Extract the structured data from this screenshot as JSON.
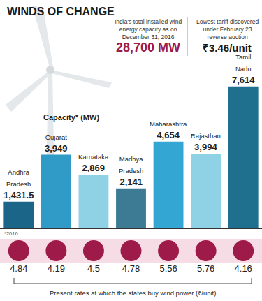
{
  "chart_data": {
    "type": "bar",
    "title": "WINDS OF CHANGE",
    "stats": [
      {
        "text": "India's total installed wind energy capacity as on December 31, 2016",
        "value": 28700,
        "value_label": "28,700 MW"
      },
      {
        "text": "Lowest tariff discovered under February 23 reverse auction",
        "value": 3.46,
        "value_label": "₹3.46/unit"
      }
    ],
    "y_label": "Capacity* (MW)",
    "footnote": "*2016",
    "categories": [
      "Andhra Pradesh",
      "Gujarat",
      "Karnataka",
      "Madhya Pradesh",
      "Maharashtra",
      "Rajasthan",
      "Tamil Nadu"
    ],
    "values": [
      1431.5,
      3949,
      2869,
      2141,
      4654,
      3994,
      7614
    ],
    "value_labels": [
      "1,431.5",
      "3,949",
      "2,869",
      "2,141",
      "4,654",
      "3,994",
      "7,614"
    ],
    "colors": [
      "#1b6688",
      "#2f9bc6",
      "#8fd2e6",
      "#3d7b95",
      "#34a6d4",
      "#8fd2e6",
      "#1f6f8e"
    ],
    "data_labels": true,
    "tick_labels": false,
    "ylim": [
      0,
      10000
    ],
    "yticks": [],
    "rates": {
      "label": "Present rates at which the states buy wind power (₹/unit)",
      "values": [
        4.84,
        4.19,
        4.5,
        4.78,
        5.56,
        5.76,
        4.16
      ],
      "color": "#9e1a48"
    }
  }
}
